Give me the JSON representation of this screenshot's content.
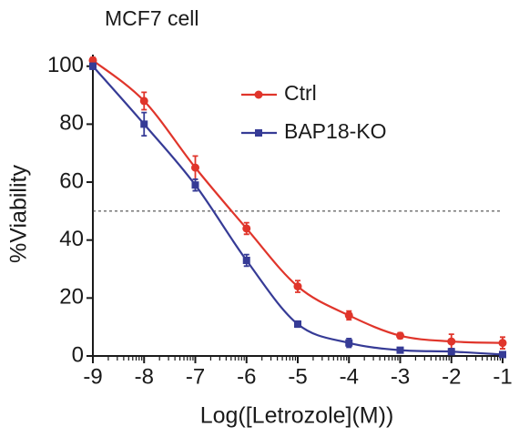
{
  "chart_data": {
    "type": "dose-response",
    "title": "MCF7 cell",
    "x_label": "Log([Letrozole](M))",
    "y_label": "%Viability",
    "x": [
      -9,
      -8,
      -7,
      -6,
      -5,
      -4,
      -3,
      -2,
      -1
    ],
    "series": [
      {
        "name": "Ctrl",
        "color": "#e0352b",
        "marker": "circle",
        "values": [
          102,
          88,
          65,
          44,
          24,
          14,
          7,
          5,
          4.5
        ],
        "errors": [
          1,
          3,
          4,
          2,
          2,
          1.5,
          1,
          2.5,
          2
        ]
      },
      {
        "name": "BAP18-KO",
        "color": "#363b96",
        "marker": "square",
        "values": [
          100,
          80,
          59,
          33,
          11,
          4.5,
          2,
          1.5,
          0.5
        ],
        "errors": [
          1,
          4,
          2,
          2,
          1,
          1.5,
          0.5,
          1,
          0.5
        ]
      }
    ],
    "xlim": [
      -9,
      -1
    ],
    "xticks": [
      -9,
      -8,
      -7,
      -6,
      -5,
      -4,
      -3,
      -2,
      -1
    ],
    "minor_ticks": true,
    "ylim": [
      0,
      104
    ],
    "yticks": [
      0,
      20,
      40,
      60,
      80,
      100
    ],
    "hline": 50
  }
}
